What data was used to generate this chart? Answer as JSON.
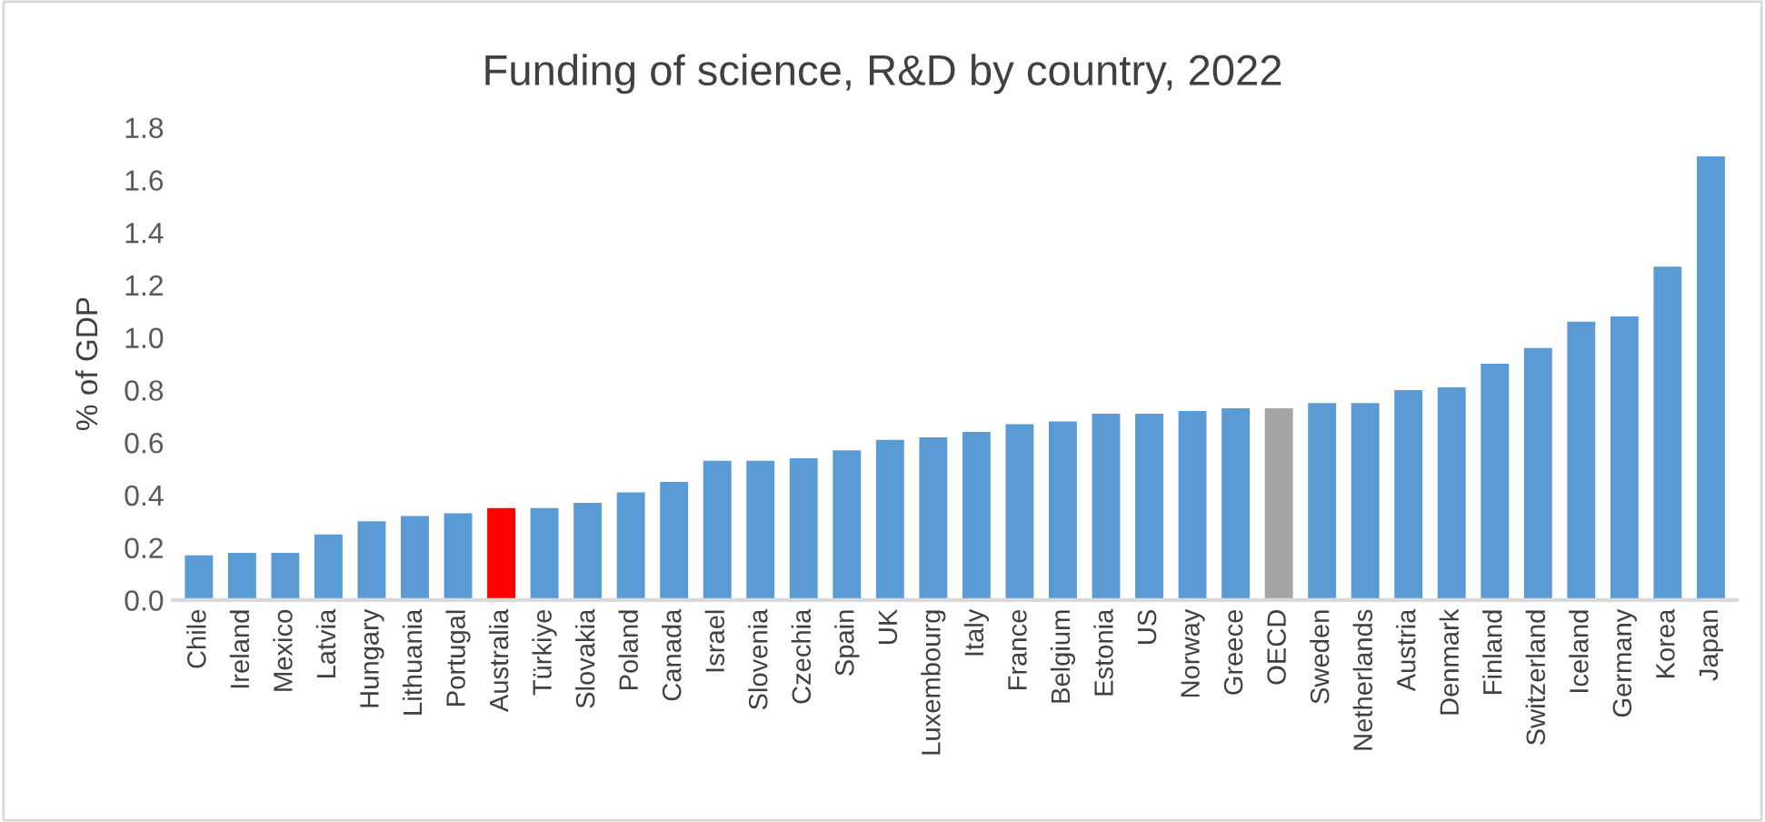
{
  "chart_data": {
    "type": "bar",
    "title": "Funding of science, R&D by country, 2022",
    "ylabel": "% of GDP",
    "categories": [
      "Chile",
      "Ireland",
      "Mexico",
      "Latvia",
      "Hungary",
      "Lithuania",
      "Portugal",
      "Australia",
      "Türkiye",
      "Slovakia",
      "Poland",
      "Canada",
      "Israel",
      "Slovenia",
      "Czechia",
      "Spain",
      "UK",
      "Luxembourg",
      "Italy",
      "France",
      "Belgium",
      "Estonia",
      "US",
      "Norway",
      "Greece",
      "OECD",
      "Sweden",
      "Netherlands",
      "Austria",
      "Denmark",
      "Finland",
      "Switzerland",
      "Iceland",
      "Germany",
      "Korea",
      "Japan"
    ],
    "values": [
      0.17,
      0.18,
      0.18,
      0.25,
      0.3,
      0.32,
      0.33,
      0.35,
      0.35,
      0.37,
      0.41,
      0.45,
      0.53,
      0.53,
      0.54,
      0.57,
      0.61,
      0.62,
      0.64,
      0.67,
      0.68,
      0.71,
      0.71,
      0.72,
      0.73,
      0.73,
      0.75,
      0.75,
      0.8,
      0.81,
      0.9,
      0.96,
      1.06,
      1.08,
      1.27,
      1.69
    ],
    "colors": [
      "#5b9bd5",
      "#5b9bd5",
      "#5b9bd5",
      "#5b9bd5",
      "#5b9bd5",
      "#5b9bd5",
      "#5b9bd5",
      "#ff0000",
      "#5b9bd5",
      "#5b9bd5",
      "#5b9bd5",
      "#5b9bd5",
      "#5b9bd5",
      "#5b9bd5",
      "#5b9bd5",
      "#5b9bd5",
      "#5b9bd5",
      "#5b9bd5",
      "#5b9bd5",
      "#5b9bd5",
      "#5b9bd5",
      "#5b9bd5",
      "#5b9bd5",
      "#5b9bd5",
      "#5b9bd5",
      "#a5a5a5",
      "#5b9bd5",
      "#5b9bd5",
      "#5b9bd5",
      "#5b9bd5",
      "#5b9bd5",
      "#5b9bd5",
      "#5b9bd5",
      "#5b9bd5",
      "#5b9bd5",
      "#5b9bd5"
    ],
    "ylim": [
      0,
      1.8
    ],
    "yticks": [
      {
        "value": 0,
        "label": "0.0"
      },
      {
        "value": 0.2,
        "label": "0.2"
      },
      {
        "value": 0.4,
        "label": "0.4"
      },
      {
        "value": 0.6,
        "label": "0.6"
      },
      {
        "value": 0.8,
        "label": "0.8"
      },
      {
        "value": 1.0,
        "label": "1.0"
      },
      {
        "value": 1.2,
        "label": "1.2"
      },
      {
        "value": 1.4,
        "label": "1.4"
      },
      {
        "value": 1.6,
        "label": "1.6"
      },
      {
        "value": 1.8,
        "label": "1.8"
      }
    ],
    "grid": false,
    "legend": false
  }
}
